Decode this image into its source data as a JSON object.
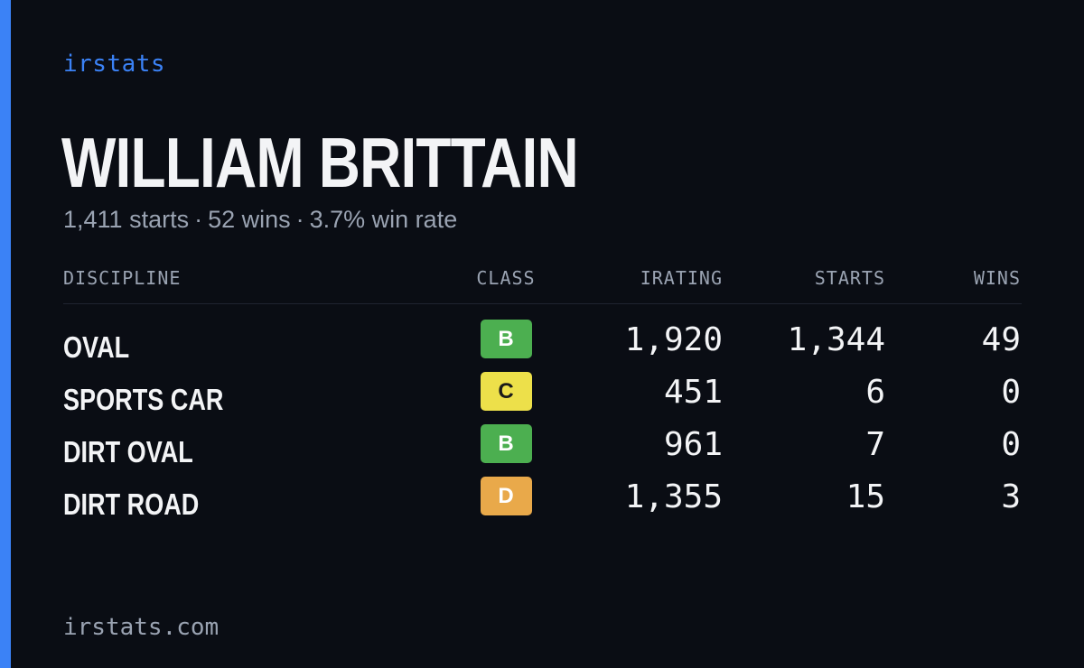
{
  "brand": "irstats",
  "driver": {
    "name": "WILLIAM BRITTAIN",
    "starts_text": "1,411 starts",
    "wins_text": "52 wins",
    "winrate_text": "3.7% win rate",
    "separator": "·"
  },
  "table": {
    "headers": {
      "discipline": "DISCIPLINE",
      "class": "CLASS",
      "irating": "IRATING",
      "starts": "STARTS",
      "wins": "WINS"
    },
    "rows": [
      {
        "discipline": "OVAL",
        "class": "B",
        "class_color": "#4caf50",
        "class_text_color": "#ffffff",
        "irating": "1,920",
        "starts": "1,344",
        "wins": "49"
      },
      {
        "discipline": "SPORTS CAR",
        "class": "C",
        "class_color": "#ede04a",
        "class_text_color": "#1a1a1a",
        "irating": "451",
        "starts": "6",
        "wins": "0"
      },
      {
        "discipline": "DIRT OVAL",
        "class": "B",
        "class_color": "#4caf50",
        "class_text_color": "#ffffff",
        "irating": "961",
        "starts": "7",
        "wins": "0"
      },
      {
        "discipline": "DIRT ROAD",
        "class": "D",
        "class_color": "#e9a94a",
        "class_text_color": "#ffffff",
        "irating": "1,355",
        "starts": "15",
        "wins": "3"
      }
    ]
  },
  "footer": "irstats.com",
  "colors": {
    "accent": "#3b82f6",
    "background": "#0a0d14"
  }
}
